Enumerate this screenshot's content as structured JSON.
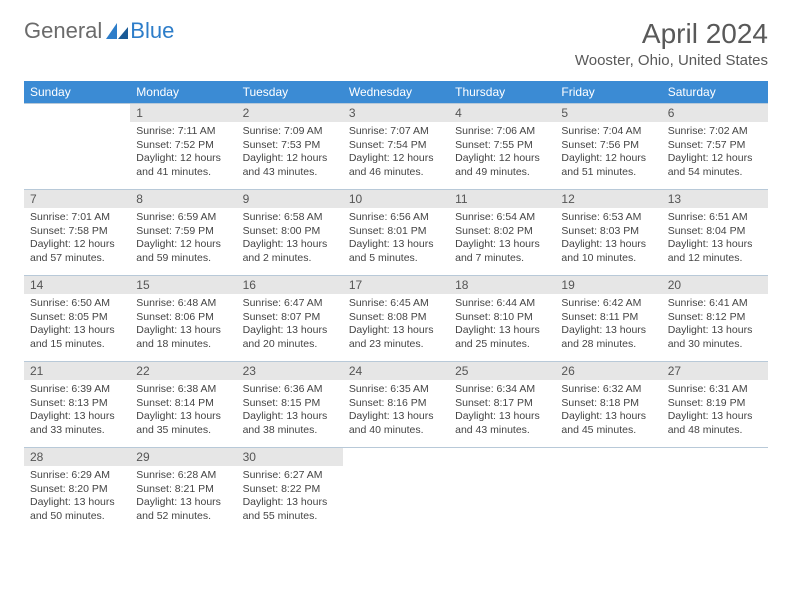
{
  "logo": {
    "text1": "General",
    "text2": "Blue"
  },
  "title": "April 2024",
  "location": "Wooster, Ohio, United States",
  "day_headers": [
    "Sunday",
    "Monday",
    "Tuesday",
    "Wednesday",
    "Thursday",
    "Friday",
    "Saturday"
  ],
  "colors": {
    "header_bg": "#3b8bd4",
    "daynum_bg": "#e6e6e6",
    "border": "#b8c9d8",
    "logo_gray": "#6b6b6b",
    "logo_blue": "#2d7dc9",
    "title_gray": "#595959"
  },
  "weeks": [
    [
      {
        "num": "",
        "sunrise": "",
        "sunset": "",
        "daylight": ""
      },
      {
        "num": "1",
        "sunrise": "Sunrise: 7:11 AM",
        "sunset": "Sunset: 7:52 PM",
        "daylight": "Daylight: 12 hours and 41 minutes."
      },
      {
        "num": "2",
        "sunrise": "Sunrise: 7:09 AM",
        "sunset": "Sunset: 7:53 PM",
        "daylight": "Daylight: 12 hours and 43 minutes."
      },
      {
        "num": "3",
        "sunrise": "Sunrise: 7:07 AM",
        "sunset": "Sunset: 7:54 PM",
        "daylight": "Daylight: 12 hours and 46 minutes."
      },
      {
        "num": "4",
        "sunrise": "Sunrise: 7:06 AM",
        "sunset": "Sunset: 7:55 PM",
        "daylight": "Daylight: 12 hours and 49 minutes."
      },
      {
        "num": "5",
        "sunrise": "Sunrise: 7:04 AM",
        "sunset": "Sunset: 7:56 PM",
        "daylight": "Daylight: 12 hours and 51 minutes."
      },
      {
        "num": "6",
        "sunrise": "Sunrise: 7:02 AM",
        "sunset": "Sunset: 7:57 PM",
        "daylight": "Daylight: 12 hours and 54 minutes."
      }
    ],
    [
      {
        "num": "7",
        "sunrise": "Sunrise: 7:01 AM",
        "sunset": "Sunset: 7:58 PM",
        "daylight": "Daylight: 12 hours and 57 minutes."
      },
      {
        "num": "8",
        "sunrise": "Sunrise: 6:59 AM",
        "sunset": "Sunset: 7:59 PM",
        "daylight": "Daylight: 12 hours and 59 minutes."
      },
      {
        "num": "9",
        "sunrise": "Sunrise: 6:58 AM",
        "sunset": "Sunset: 8:00 PM",
        "daylight": "Daylight: 13 hours and 2 minutes."
      },
      {
        "num": "10",
        "sunrise": "Sunrise: 6:56 AM",
        "sunset": "Sunset: 8:01 PM",
        "daylight": "Daylight: 13 hours and 5 minutes."
      },
      {
        "num": "11",
        "sunrise": "Sunrise: 6:54 AM",
        "sunset": "Sunset: 8:02 PM",
        "daylight": "Daylight: 13 hours and 7 minutes."
      },
      {
        "num": "12",
        "sunrise": "Sunrise: 6:53 AM",
        "sunset": "Sunset: 8:03 PM",
        "daylight": "Daylight: 13 hours and 10 minutes."
      },
      {
        "num": "13",
        "sunrise": "Sunrise: 6:51 AM",
        "sunset": "Sunset: 8:04 PM",
        "daylight": "Daylight: 13 hours and 12 minutes."
      }
    ],
    [
      {
        "num": "14",
        "sunrise": "Sunrise: 6:50 AM",
        "sunset": "Sunset: 8:05 PM",
        "daylight": "Daylight: 13 hours and 15 minutes."
      },
      {
        "num": "15",
        "sunrise": "Sunrise: 6:48 AM",
        "sunset": "Sunset: 8:06 PM",
        "daylight": "Daylight: 13 hours and 18 minutes."
      },
      {
        "num": "16",
        "sunrise": "Sunrise: 6:47 AM",
        "sunset": "Sunset: 8:07 PM",
        "daylight": "Daylight: 13 hours and 20 minutes."
      },
      {
        "num": "17",
        "sunrise": "Sunrise: 6:45 AM",
        "sunset": "Sunset: 8:08 PM",
        "daylight": "Daylight: 13 hours and 23 minutes."
      },
      {
        "num": "18",
        "sunrise": "Sunrise: 6:44 AM",
        "sunset": "Sunset: 8:10 PM",
        "daylight": "Daylight: 13 hours and 25 minutes."
      },
      {
        "num": "19",
        "sunrise": "Sunrise: 6:42 AM",
        "sunset": "Sunset: 8:11 PM",
        "daylight": "Daylight: 13 hours and 28 minutes."
      },
      {
        "num": "20",
        "sunrise": "Sunrise: 6:41 AM",
        "sunset": "Sunset: 8:12 PM",
        "daylight": "Daylight: 13 hours and 30 minutes."
      }
    ],
    [
      {
        "num": "21",
        "sunrise": "Sunrise: 6:39 AM",
        "sunset": "Sunset: 8:13 PM",
        "daylight": "Daylight: 13 hours and 33 minutes."
      },
      {
        "num": "22",
        "sunrise": "Sunrise: 6:38 AM",
        "sunset": "Sunset: 8:14 PM",
        "daylight": "Daylight: 13 hours and 35 minutes."
      },
      {
        "num": "23",
        "sunrise": "Sunrise: 6:36 AM",
        "sunset": "Sunset: 8:15 PM",
        "daylight": "Daylight: 13 hours and 38 minutes."
      },
      {
        "num": "24",
        "sunrise": "Sunrise: 6:35 AM",
        "sunset": "Sunset: 8:16 PM",
        "daylight": "Daylight: 13 hours and 40 minutes."
      },
      {
        "num": "25",
        "sunrise": "Sunrise: 6:34 AM",
        "sunset": "Sunset: 8:17 PM",
        "daylight": "Daylight: 13 hours and 43 minutes."
      },
      {
        "num": "26",
        "sunrise": "Sunrise: 6:32 AM",
        "sunset": "Sunset: 8:18 PM",
        "daylight": "Daylight: 13 hours and 45 minutes."
      },
      {
        "num": "27",
        "sunrise": "Sunrise: 6:31 AM",
        "sunset": "Sunset: 8:19 PM",
        "daylight": "Daylight: 13 hours and 48 minutes."
      }
    ],
    [
      {
        "num": "28",
        "sunrise": "Sunrise: 6:29 AM",
        "sunset": "Sunset: 8:20 PM",
        "daylight": "Daylight: 13 hours and 50 minutes."
      },
      {
        "num": "29",
        "sunrise": "Sunrise: 6:28 AM",
        "sunset": "Sunset: 8:21 PM",
        "daylight": "Daylight: 13 hours and 52 minutes."
      },
      {
        "num": "30",
        "sunrise": "Sunrise: 6:27 AM",
        "sunset": "Sunset: 8:22 PM",
        "daylight": "Daylight: 13 hours and 55 minutes."
      },
      {
        "num": "",
        "sunrise": "",
        "sunset": "",
        "daylight": ""
      },
      {
        "num": "",
        "sunrise": "",
        "sunset": "",
        "daylight": ""
      },
      {
        "num": "",
        "sunrise": "",
        "sunset": "",
        "daylight": ""
      },
      {
        "num": "",
        "sunrise": "",
        "sunset": "",
        "daylight": ""
      }
    ]
  ]
}
